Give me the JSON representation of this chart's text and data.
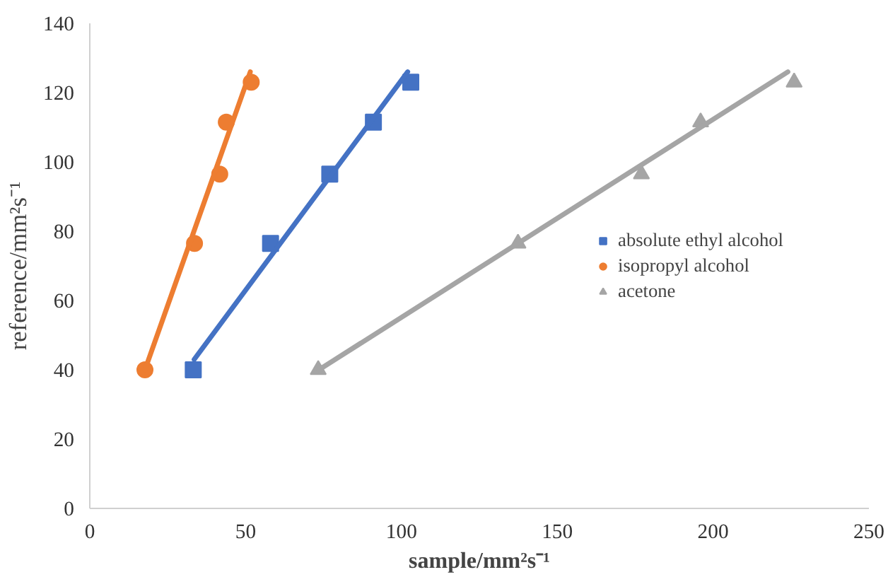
{
  "chart_data": {
    "type": "scatter",
    "xlabel": "sample/mm²s⁻¹",
    "ylabel": "reference/mm²s⁻¹",
    "xlim": [
      0,
      250
    ],
    "xticks": [
      0,
      50,
      100,
      150,
      200,
      250
    ],
    "ylim": [
      0,
      140
    ],
    "yticks": [
      0,
      20,
      40,
      60,
      80,
      100,
      120,
      140
    ],
    "grid": false,
    "legend": "right",
    "series": [
      {
        "name": "absolute ethyl alcohol",
        "color": "#4472c4",
        "marker": "square",
        "x": [
          33.2,
          58,
          77,
          91,
          103
        ],
        "values": [
          40,
          76.5,
          96.5,
          111.5,
          123
        ]
      },
      {
        "name": "isopropyl alcohol",
        "color": "#ed7d31",
        "marker": "circle",
        "x": [
          17.7,
          33.6,
          41.7,
          43.8,
          51.8
        ],
        "values": [
          40,
          76.5,
          96.5,
          111.5,
          123
        ]
      },
      {
        "name": "acetone",
        "color": "#a5a5a5",
        "marker": "triangle",
        "x": [
          73.3,
          137.4,
          177,
          196,
          226
        ],
        "values": [
          40,
          76.5,
          96.5,
          111.5,
          123
        ]
      },
      {
        "type": "line",
        "color": "#4472c4",
        "x": [
          33.5,
          102
        ],
        "values": [
          43,
          126
        ]
      },
      {
        "type": "line",
        "color": "#ed7d31",
        "x": [
          17.7,
          51.5
        ],
        "values": [
          40,
          126
        ]
      },
      {
        "type": "line",
        "color": "#a5a5a5",
        "x": [
          73.5,
          224
        ],
        "values": [
          40,
          126
        ]
      }
    ]
  }
}
